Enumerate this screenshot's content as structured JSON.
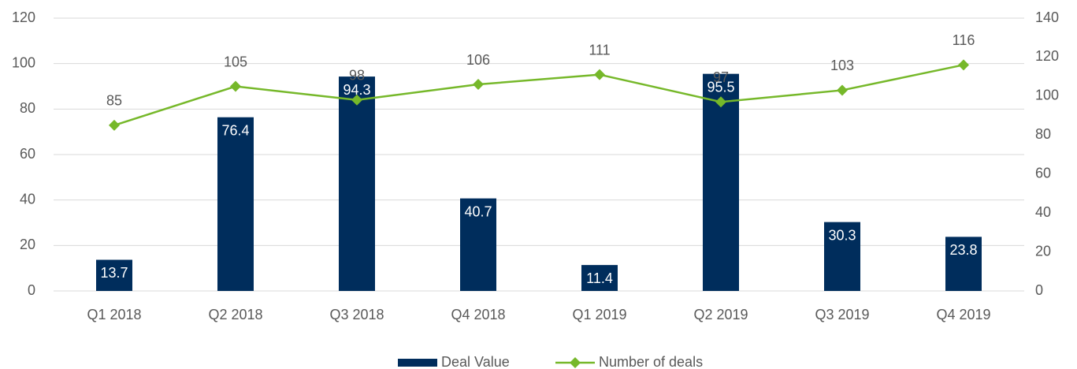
{
  "chart_data": {
    "type": "bar",
    "categories": [
      "Q1 2018",
      "Q2 2018",
      "Q3 2018",
      "Q4 2018",
      "Q1 2019",
      "Q2 2019",
      "Q3 2019",
      "Q4 2019"
    ],
    "series": [
      {
        "name": "Deal Value",
        "type": "bar",
        "color": "#002d5c",
        "values": [
          13.7,
          76.4,
          94.3,
          40.7,
          11.4,
          95.5,
          30.3,
          23.8
        ]
      },
      {
        "name": "Number of deals",
        "type": "line",
        "axis": "y2",
        "color": "#76b82a",
        "values": [
          85,
          105,
          98,
          106,
          111,
          97,
          103,
          116
        ]
      }
    ],
    "ylim": [
      0,
      120
    ],
    "yticks": [
      0,
      20,
      40,
      60,
      80,
      100,
      120
    ],
    "y2lim": [
      0,
      140
    ],
    "y2ticks": [
      0,
      20,
      40,
      60,
      80,
      100,
      120,
      140
    ],
    "grid": true,
    "legend": "bottom"
  }
}
